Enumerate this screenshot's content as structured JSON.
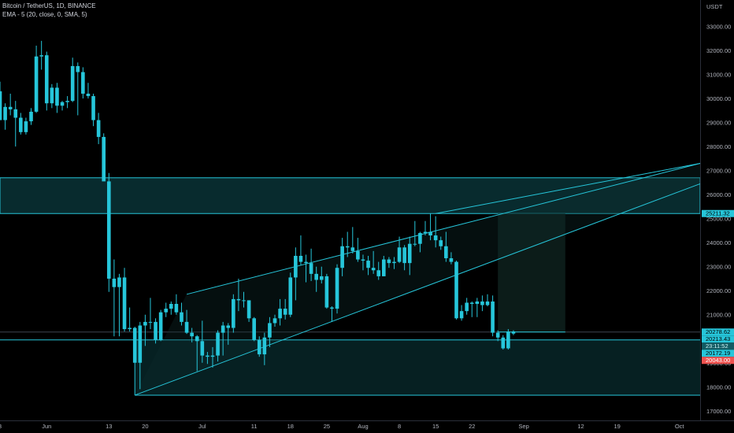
{
  "header": {
    "symbol_line": "Bitcoin / TetherUS, 1D, BINANCE",
    "indicator_line": "EMA - 5 (20, close, 0, SMA, 5)"
  },
  "currency": "USDT",
  "colors": {
    "background": "#000000",
    "candle": "#26c6da",
    "zone_fill": "#0b3a3e",
    "zone_line": "#26c6da",
    "price_label_cyan": "#26c6da",
    "price_label_red": "#ef5350",
    "axis_text": "#b2b5be"
  },
  "chart_data": {
    "type": "candlestick",
    "title": "Bitcoin / TetherUS, 1D, BINANCE",
    "ylabel": "USDT",
    "y_ticks": [
      17000,
      18000,
      19000,
      20000,
      21000,
      22000,
      23000,
      24000,
      25000,
      26000,
      27000,
      28000,
      29000,
      30000,
      31000,
      32000,
      33000
    ],
    "x_tick_labels": [
      "3",
      "Jun",
      "13",
      "20",
      "Jul",
      "11",
      "18",
      "25",
      "Aug",
      "8",
      "15",
      "22",
      "Sep",
      "12",
      "19",
      "Oct"
    ],
    "x_tick_dates": [
      "2022-05-23",
      "2022-06-01",
      "2022-06-13",
      "2022-06-20",
      "2022-07-01",
      "2022-07-11",
      "2022-07-18",
      "2022-07-25",
      "2022-08-01",
      "2022-08-08",
      "2022-08-15",
      "2022-08-22",
      "2022-09-01",
      "2022-09-12",
      "2022-09-19",
      "2022-10-01"
    ],
    "ylim": [
      16600,
      34100
    ],
    "xlim": [
      "2022-05-23",
      "2022-10-05"
    ],
    "price_labels": [
      {
        "value": 25211.32,
        "text": "25211.32",
        "style": "cyan"
      },
      {
        "value": 20278.62,
        "text": "20278.62",
        "style": "cyan"
      },
      {
        "value": 20213.43,
        "text": "20213.43",
        "style": "cyan"
      },
      {
        "value": 20172.19,
        "text": "20172.19",
        "style": "cyan"
      },
      {
        "value": 20043.0,
        "text": "20043.00",
        "style": "red"
      }
    ],
    "countdown": "23:11:52",
    "resistance_zone": {
      "low": 25211.32,
      "high": 26700
    },
    "support_zone": {
      "low": 17650,
      "high": 19950
    },
    "rising_wedge": {
      "upper": [
        [
          "2022-06-28",
          21850
        ],
        [
          "2022-10-05",
          27300
        ]
      ],
      "lower": [
        [
          "2022-06-18",
          17650
        ],
        [
          "2022-10-05",
          26450
        ]
      ]
    },
    "trend_lines": [
      {
        "from": [
          "2022-08-15",
          25211.32
        ],
        "to": [
          "2022-10-05",
          27300
        ]
      },
      {
        "from": [
          "2022-08-27",
          20278.62
        ],
        "to": [
          "2022-09-09",
          20278.62
        ]
      }
    ],
    "projection_box": {
      "from": "2022-08-27",
      "to": "2022-09-09",
      "low": 20278.62,
      "high": 25211.32
    },
    "series": [
      {
        "ohlc": [
          [
            "2022-05-23",
            30300,
            30700,
            29200,
            29100
          ],
          [
            "2022-05-24",
            29100,
            29800,
            28700,
            29650
          ],
          [
            "2022-05-25",
            29650,
            30200,
            29300,
            29550
          ],
          [
            "2022-05-26",
            29550,
            29900,
            28000,
            29200
          ],
          [
            "2022-05-27",
            29200,
            29400,
            28500,
            28600
          ],
          [
            "2022-05-28",
            28600,
            29200,
            28500,
            29050
          ],
          [
            "2022-05-29",
            29050,
            29600,
            28900,
            29450
          ],
          [
            "2022-05-30",
            29450,
            32200,
            29400,
            31750
          ],
          [
            "2022-05-31",
            31750,
            32400,
            31200,
            31800
          ],
          [
            "2022-06-01",
            31800,
            31950,
            29500,
            29800
          ],
          [
            "2022-06-02",
            29800,
            30600,
            29600,
            30450
          ],
          [
            "2022-06-03",
            30450,
            30650,
            29400,
            29700
          ],
          [
            "2022-06-04",
            29700,
            29900,
            29500,
            29850
          ],
          [
            "2022-06-05",
            29850,
            30100,
            29600,
            29900
          ],
          [
            "2022-06-06",
            29900,
            31700,
            29850,
            31350
          ],
          [
            "2022-06-07",
            31350,
            31500,
            29300,
            31100
          ],
          [
            "2022-06-08",
            31100,
            31300,
            30000,
            30200
          ],
          [
            "2022-06-09",
            30200,
            30650,
            30000,
            30100
          ],
          [
            "2022-06-10",
            30100,
            30200,
            28850,
            29100
          ],
          [
            "2022-06-11",
            29100,
            29400,
            28100,
            28400
          ],
          [
            "2022-06-12",
            28400,
            28550,
            26600,
            26550
          ],
          [
            "2022-06-13",
            26550,
            26900,
            21950,
            22500
          ],
          [
            "2022-06-14",
            22500,
            23300,
            20100,
            22150
          ],
          [
            "2022-06-15",
            22150,
            22700,
            20100,
            22550
          ],
          [
            "2022-06-16",
            22550,
            22950,
            20300,
            20400
          ],
          [
            "2022-06-17",
            20400,
            21300,
            20300,
            20450
          ],
          [
            "2022-06-18",
            20450,
            20500,
            17650,
            19000
          ],
          [
            "2022-06-19",
            19000,
            20700,
            17900,
            20550
          ],
          [
            "2022-06-20",
            20550,
            21000,
            19700,
            20700
          ],
          [
            "2022-06-21",
            20700,
            21700,
            20400,
            20700
          ],
          [
            "2022-06-22",
            20700,
            20850,
            19800,
            19950
          ],
          [
            "2022-06-23",
            19950,
            21200,
            19900,
            21100
          ],
          [
            "2022-06-24",
            21100,
            21500,
            20900,
            21250
          ],
          [
            "2022-06-25",
            21250,
            21550,
            21000,
            21450
          ],
          [
            "2022-06-26",
            21450,
            21850,
            21000,
            21100
          ],
          [
            "2022-06-27",
            21100,
            21500,
            20550,
            20700
          ],
          [
            "2022-06-28",
            20700,
            21200,
            20200,
            20250
          ],
          [
            "2022-06-29",
            20250,
            20450,
            19850,
            20100
          ],
          [
            "2022-06-30",
            20100,
            20150,
            18650,
            19900
          ],
          [
            "2022-07-01",
            19900,
            20750,
            19000,
            19300
          ],
          [
            "2022-07-02",
            19300,
            19450,
            18950,
            19250
          ],
          [
            "2022-07-03",
            19250,
            19650,
            18800,
            19300
          ],
          [
            "2022-07-04",
            19300,
            20350,
            19050,
            20250
          ],
          [
            "2022-07-05",
            20250,
            20700,
            19300,
            20550
          ],
          [
            "2022-07-06",
            20550,
            20650,
            19750,
            20450
          ],
          [
            "2022-07-07",
            20450,
            21850,
            20250,
            21650
          ],
          [
            "2022-07-08",
            21650,
            22500,
            21150,
            21600
          ],
          [
            "2022-07-09",
            21600,
            21950,
            21300,
            21600
          ],
          [
            "2022-07-10",
            21600,
            21600,
            20700,
            20850
          ],
          [
            "2022-07-11",
            20850,
            20900,
            19900,
            19950
          ],
          [
            "2022-07-12",
            19950,
            20100,
            19250,
            19350
          ],
          [
            "2022-07-13",
            19350,
            20250,
            18900,
            20050
          ],
          [
            "2022-07-14",
            20050,
            20900,
            19650,
            20650
          ],
          [
            "2022-07-15",
            20650,
            21000,
            20500,
            20850
          ],
          [
            "2022-07-16",
            20850,
            21650,
            20550,
            21250
          ],
          [
            "2022-07-17",
            21250,
            21650,
            20800,
            21000
          ],
          [
            "2022-07-18",
            21000,
            22750,
            20900,
            22550
          ],
          [
            "2022-07-19",
            22550,
            23800,
            21600,
            23450
          ],
          [
            "2022-07-20",
            23450,
            24300,
            23050,
            23200
          ],
          [
            "2022-07-21",
            23200,
            23500,
            22350,
            23150
          ],
          [
            "2022-07-22",
            23150,
            23750,
            22400,
            22700
          ],
          [
            "2022-07-23",
            22700,
            23000,
            21950,
            22450
          ],
          [
            "2022-07-24",
            22450,
            23000,
            22300,
            22600
          ],
          [
            "2022-07-25",
            22600,
            22700,
            21250,
            21300
          ],
          [
            "2022-07-26",
            21300,
            21350,
            20700,
            21250
          ],
          [
            "2022-07-27",
            21250,
            23100,
            21050,
            22950
          ],
          [
            "2022-07-28",
            22950,
            24200,
            22600,
            23850
          ],
          [
            "2022-07-29",
            23850,
            24450,
            23400,
            23800
          ],
          [
            "2022-07-30",
            23800,
            24650,
            23550,
            23650
          ],
          [
            "2022-07-31",
            23650,
            24200,
            23200,
            23300
          ],
          [
            "2022-08-01",
            23300,
            23500,
            22850,
            23250
          ],
          [
            "2022-08-02",
            23250,
            23450,
            22650,
            22950
          ],
          [
            "2022-08-03",
            22950,
            23650,
            22700,
            22850
          ],
          [
            "2022-08-04",
            22850,
            23200,
            22450,
            22600
          ],
          [
            "2022-08-05",
            22600,
            23450,
            22600,
            23300
          ],
          [
            "2022-08-06",
            23300,
            23400,
            22950,
            23150
          ],
          [
            "2022-08-07",
            23150,
            23400,
            22900,
            23200
          ],
          [
            "2022-08-08",
            23200,
            24250,
            23150,
            23800
          ],
          [
            "2022-08-09",
            23800,
            23900,
            22850,
            23150
          ],
          [
            "2022-08-10",
            23150,
            24250,
            22650,
            23950
          ],
          [
            "2022-08-11",
            23950,
            24900,
            23850,
            23950
          ],
          [
            "2022-08-12",
            23950,
            24450,
            23600,
            24400
          ],
          [
            "2022-08-13",
            24400,
            24900,
            24300,
            24450
          ],
          [
            "2022-08-14",
            24450,
            25211.32,
            24100,
            24300
          ],
          [
            "2022-08-15",
            24300,
            25100,
            23800,
            24100
          ],
          [
            "2022-08-16",
            24100,
            24250,
            23700,
            23850
          ],
          [
            "2022-08-17",
            23850,
            24450,
            23200,
            23350
          ],
          [
            "2022-08-18",
            23350,
            23600,
            23100,
            23200
          ],
          [
            "2022-08-19",
            23200,
            23250,
            20800,
            20850
          ],
          [
            "2022-08-20",
            20850,
            21400,
            20750,
            21150
          ],
          [
            "2022-08-21",
            21150,
            21700,
            21000,
            21500
          ],
          [
            "2022-08-22",
            21500,
            21550,
            20900,
            21450
          ],
          [
            "2022-08-23",
            21450,
            21700,
            20900,
            21550
          ],
          [
            "2022-08-24",
            21550,
            21800,
            21150,
            21400
          ],
          [
            "2022-08-25",
            21400,
            21850,
            21350,
            21550
          ],
          [
            "2022-08-26",
            21550,
            21800,
            20100,
            20250
          ],
          [
            "2022-08-27",
            20250,
            20350,
            19900,
            20050
          ],
          [
            "2022-08-28",
            20050,
            20150,
            19550,
            19600
          ],
          [
            "2022-08-29",
            19600,
            20400,
            19550,
            20300
          ],
          [
            "2022-08-30",
            20300,
            20350,
            20150,
            20213.43
          ]
        ]
      }
    ]
  }
}
